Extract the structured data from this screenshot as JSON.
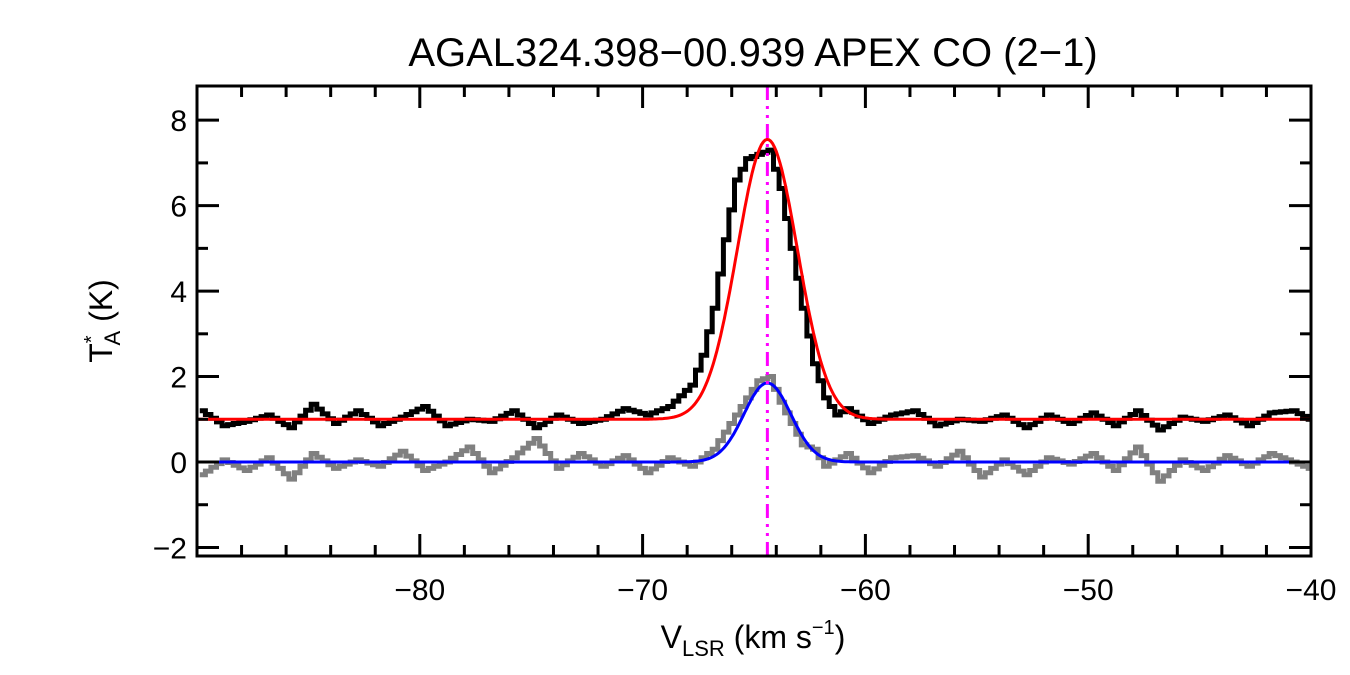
{
  "chart_data": {
    "type": "line",
    "title": "AGAL324.398−00.939  APEX CO (2−1)",
    "xlabel": {
      "main": "V",
      "sub": "LSR",
      "unit_open": " (km s",
      "unit_sup": "−1",
      "unit_close": ")"
    },
    "ylabel": {
      "main": "T",
      "sup": "*",
      "sub": "A",
      "unit": " (K)"
    },
    "xlim": [
      -90,
      -40
    ],
    "ylim": [
      -2.2,
      8.8
    ],
    "x_ticks": [
      {
        "value": -80,
        "label": "−80"
      },
      {
        "value": -70,
        "label": "−70"
      },
      {
        "value": -60,
        "label": "−60"
      },
      {
        "value": -50,
        "label": "−50"
      },
      {
        "value": -40,
        "label": "−40"
      }
    ],
    "y_ticks": [
      {
        "value": -2,
        "label": "−2"
      },
      {
        "value": 0,
        "label": "0"
      },
      {
        "value": 2,
        "label": "2"
      },
      {
        "value": 4,
        "label": "4"
      },
      {
        "value": 6,
        "label": "6"
      },
      {
        "value": 8,
        "label": "8"
      }
    ],
    "x_minor_step": 2,
    "y_minor_step": 1,
    "grid": false,
    "legend": "none",
    "channel_width": 0.25,
    "series": [
      {
        "style": "histogram",
        "color": "#000000",
        "x": [
          -89.75,
          -88.75,
          -87.75,
          -86.75,
          -85.75,
          -84.75,
          -83.75,
          -82.75,
          -81.75,
          -80.75,
          -79.75,
          -78.75,
          -77.75,
          -76.75,
          -75.75,
          -74.75,
          -73.75,
          -72.75,
          -71.75,
          -70.75,
          -69.75,
          -68.75,
          -67.75,
          -67.25,
          -66.75,
          -66.25,
          -65.75,
          -65.25,
          -64.75,
          -64.25,
          -63.75,
          -63.25,
          -62.75,
          -62.25,
          -61.75,
          -61.25,
          -60.75,
          -59.75,
          -58.75,
          -57.75,
          -56.75,
          -55.75,
          -54.75,
          -53.75,
          -52.75,
          -51.75,
          -50.75,
          -49.75,
          -48.75,
          -47.75,
          -46.75,
          -45.75,
          -44.75,
          -43.75,
          -42.75,
          -41.75,
          -40.75,
          -40.0
        ],
        "y": [
          1.2,
          0.85,
          0.95,
          1.1,
          0.8,
          1.35,
          0.9,
          1.2,
          0.85,
          1.05,
          1.3,
          0.85,
          1.0,
          0.95,
          1.2,
          0.8,
          1.1,
          0.9,
          1.0,
          1.25,
          1.1,
          1.3,
          1.8,
          2.5,
          3.6,
          5.2,
          6.6,
          7.1,
          7.2,
          7.3,
          6.4,
          5.0,
          3.6,
          2.3,
          1.5,
          1.1,
          1.25,
          0.9,
          1.1,
          1.2,
          0.85,
          1.0,
          0.95,
          1.1,
          0.8,
          1.1,
          0.9,
          1.15,
          0.85,
          1.2,
          0.75,
          1.05,
          0.95,
          1.1,
          0.85,
          1.15,
          1.2,
          1.0
        ]
      },
      {
        "style": "histogram",
        "color": "#808080",
        "x": [
          -89.75,
          -88.75,
          -87.75,
          -86.75,
          -85.75,
          -84.75,
          -83.75,
          -82.75,
          -81.75,
          -80.75,
          -79.75,
          -78.75,
          -77.75,
          -76.75,
          -75.75,
          -74.75,
          -73.75,
          -72.75,
          -71.75,
          -70.75,
          -69.75,
          -68.75,
          -67.75,
          -66.75,
          -66.25,
          -65.75,
          -65.25,
          -64.75,
          -64.25,
          -63.75,
          -63.25,
          -62.75,
          -62.25,
          -61.75,
          -60.75,
          -59.75,
          -58.75,
          -57.75,
          -56.75,
          -55.75,
          -54.75,
          -53.75,
          -52.75,
          -51.75,
          -50.75,
          -49.75,
          -48.75,
          -47.75,
          -46.75,
          -45.75,
          -44.75,
          -43.75,
          -42.75,
          -41.75,
          -40.75,
          -40.0
        ],
        "y": [
          -0.3,
          0.05,
          -0.2,
          0.1,
          -0.4,
          0.2,
          -0.15,
          0.05,
          -0.1,
          0.25,
          -0.2,
          0.0,
          0.35,
          -0.25,
          0.1,
          0.55,
          -0.15,
          0.2,
          -0.1,
          0.15,
          -0.25,
          0.1,
          -0.1,
          0.3,
          0.7,
          1.1,
          1.5,
          1.9,
          2.0,
          1.4,
          0.9,
          0.4,
          0.3,
          -0.1,
          0.2,
          -0.25,
          0.1,
          0.15,
          -0.1,
          0.25,
          -0.35,
          0.05,
          -0.3,
          0.1,
          -0.05,
          0.2,
          -0.2,
          0.35,
          -0.45,
          0.05,
          -0.2,
          0.15,
          -0.1,
          0.2,
          0.0,
          -0.15
        ]
      },
      {
        "style": "gaussian",
        "color": "#ff0000",
        "baseline": 1.0,
        "amplitude": 6.55,
        "center": -64.4,
        "sigma": 1.35
      },
      {
        "style": "gaussian",
        "color": "#0000ff",
        "baseline": 0.0,
        "amplitude": 1.85,
        "center": -64.4,
        "sigma": 1.05
      }
    ],
    "vertical_marker": {
      "x": -64.4,
      "color": "#ff00ff",
      "style": "dash-dot"
    }
  }
}
